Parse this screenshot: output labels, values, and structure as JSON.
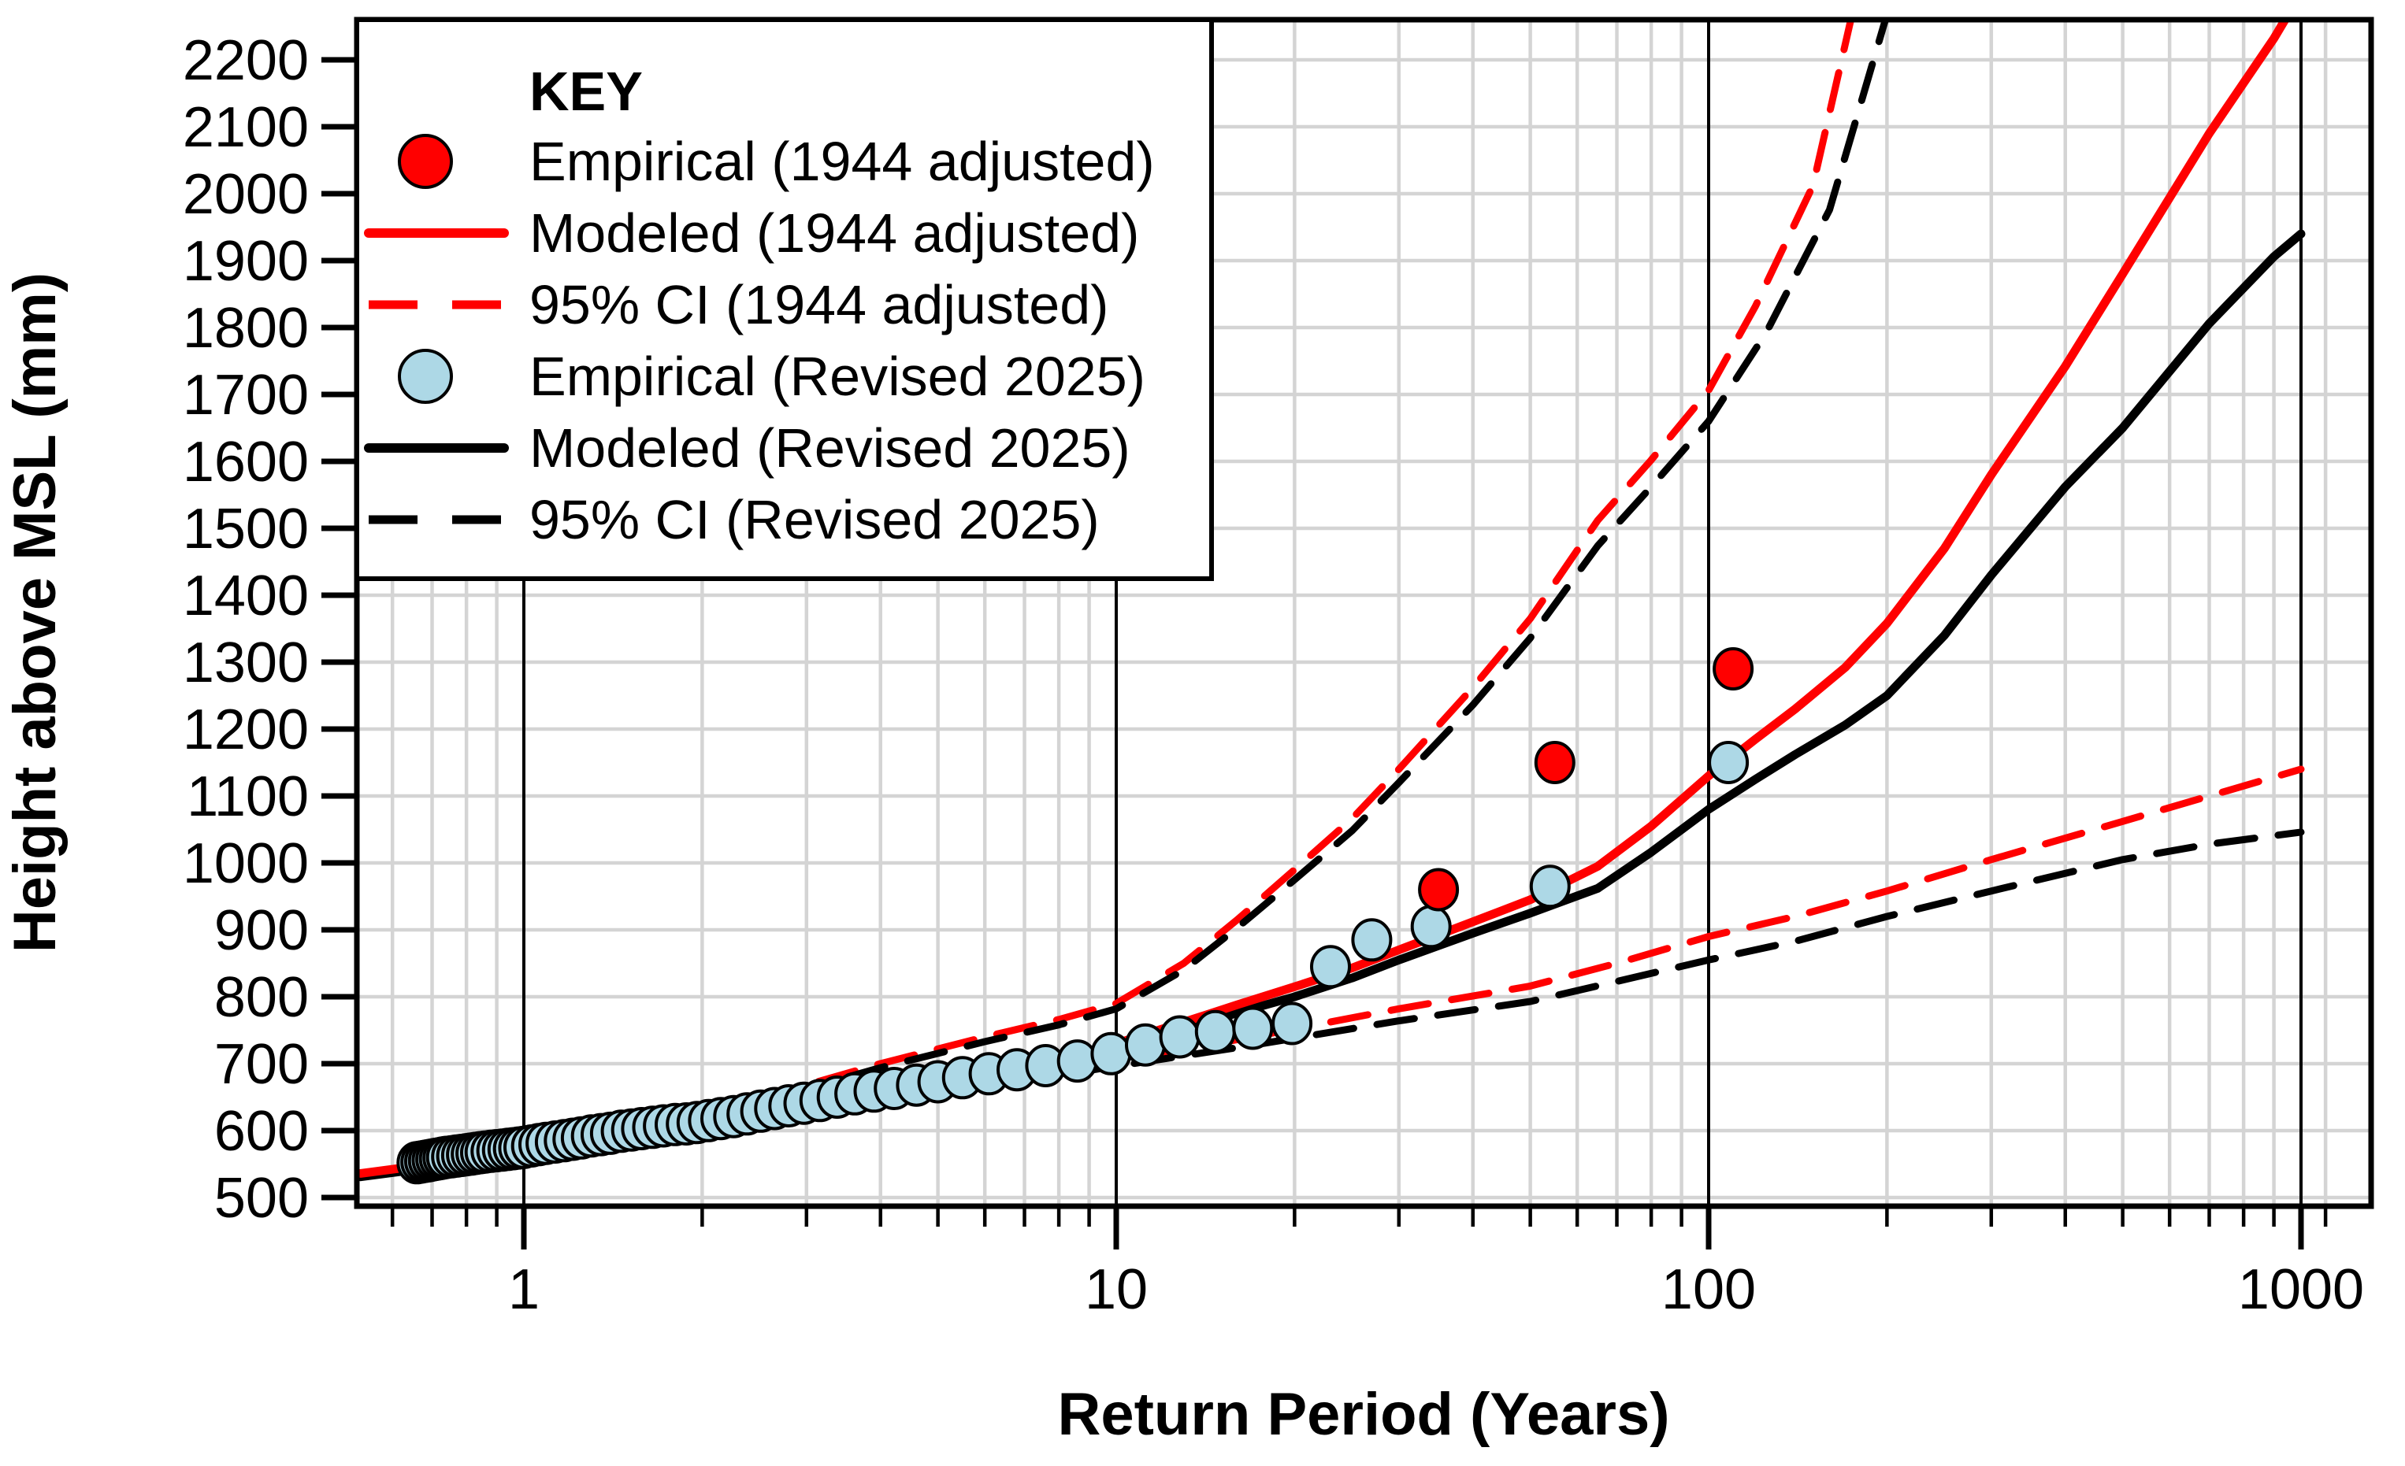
{
  "chart_data": {
    "type": "line+scatter",
    "title": "",
    "xlabel": "Return Period (Years)",
    "ylabel": "Height above MSL (mm)",
    "x_scale": "log10",
    "xlim": [
      0.52,
      1300
    ],
    "ylim": [
      482,
      2260
    ],
    "grid": true,
    "x_ticks": [
      1,
      10,
      100,
      1000
    ],
    "x_tick_labels": [
      "1",
      "10",
      "100",
      "1000"
    ],
    "x_minor_ticks": [
      0.6,
      0.7,
      0.8,
      0.9,
      2,
      3,
      4,
      5,
      6,
      7,
      8,
      9,
      20,
      30,
      40,
      50,
      60,
      70,
      80,
      90,
      200,
      300,
      400,
      500,
      600,
      700,
      800,
      900,
      1100
    ],
    "y_ticks": [
      500,
      600,
      700,
      800,
      900,
      1000,
      1100,
      1200,
      1300,
      1400,
      1500,
      1600,
      1700,
      1800,
      1900,
      2000,
      2100,
      2200
    ],
    "colors": {
      "adjusted_1944": "#ff0000",
      "revised_2025_marker": "#add8e6",
      "revised_2025_line": "#000000",
      "grid": "#d4d4d4",
      "frame": "#000000"
    },
    "legend": {
      "title": "KEY",
      "position": "top-left",
      "items": [
        {
          "label": "Empirical (1944 adjusted)",
          "swatch": "circle",
          "color": "#ff0000"
        },
        {
          "label": "Modeled (1944 adjusted)",
          "swatch": "line",
          "color": "#ff0000"
        },
        {
          "label": "95% CI (1944 adjusted)",
          "swatch": "dashed-line",
          "color": "#ff0000"
        },
        {
          "label": "Empirical (Revised 2025)",
          "swatch": "circle",
          "color": "#add8e6"
        },
        {
          "label": "Modeled (Revised 2025)",
          "swatch": "line",
          "color": "#000000"
        },
        {
          "label": "95% CI (Revised 2025)",
          "swatch": "dashed-line",
          "color": "#000000"
        }
      ]
    },
    "series": [
      {
        "name": "95% CI (1944 adjusted) upper",
        "kind": "line",
        "color": "#ff0000",
        "width": 9,
        "dash": "48 30",
        "dashoffset": 0,
        "points": [
          [
            2.5,
            648
          ],
          [
            4,
            700
          ],
          [
            6,
            740
          ],
          [
            8,
            766
          ],
          [
            10,
            790
          ],
          [
            13,
            850
          ],
          [
            16,
            915
          ],
          [
            20,
            990
          ],
          [
            25,
            1066
          ],
          [
            30,
            1140
          ],
          [
            40,
            1262
          ],
          [
            50,
            1365
          ],
          [
            65,
            1512
          ],
          [
            80,
            1602
          ],
          [
            100,
            1706
          ],
          [
            120,
            1832
          ],
          [
            150,
            2012
          ],
          [
            178,
            2300
          ]
        ]
      },
      {
        "name": "95% CI (Revised 2025) upper",
        "kind": "line",
        "color": "#000000",
        "width": 9,
        "dash": "48 30",
        "dashoffset": 39,
        "points": [
          [
            2.5,
            643
          ],
          [
            4,
            694
          ],
          [
            6,
            733
          ],
          [
            8,
            758
          ],
          [
            10,
            782
          ],
          [
            13,
            840
          ],
          [
            16,
            903
          ],
          [
            20,
            975
          ],
          [
            25,
            1048
          ],
          [
            30,
            1120
          ],
          [
            40,
            1236
          ],
          [
            50,
            1336
          ],
          [
            65,
            1474
          ],
          [
            80,
            1562
          ],
          [
            100,
            1660
          ],
          [
            125,
            1792
          ],
          [
            160,
            1976
          ],
          [
            205,
            2300
          ]
        ]
      },
      {
        "name": "95% CI (1944 adjusted) lower",
        "kind": "line",
        "color": "#ff0000",
        "width": 9,
        "dash": "48 30",
        "dashoffset": 0,
        "points": [
          [
            9,
            695
          ],
          [
            12,
            715
          ],
          [
            16,
            736
          ],
          [
            20,
            752
          ],
          [
            30,
            782
          ],
          [
            50,
            816
          ],
          [
            70,
            850
          ],
          [
            100,
            890
          ],
          [
            140,
            920
          ],
          [
            200,
            958
          ],
          [
            300,
            1005
          ],
          [
            500,
            1062
          ],
          [
            700,
            1100
          ],
          [
            1000,
            1140
          ]
        ]
      },
      {
        "name": "95% CI (Revised 2025) lower",
        "kind": "line",
        "color": "#000000",
        "width": 9,
        "dash": "48 30",
        "dashoffset": 20,
        "points": [
          [
            9,
            690
          ],
          [
            12,
            707
          ],
          [
            16,
            724
          ],
          [
            20,
            738
          ],
          [
            30,
            764
          ],
          [
            50,
            793
          ],
          [
            70,
            823
          ],
          [
            100,
            855
          ],
          [
            140,
            883
          ],
          [
            200,
            920
          ],
          [
            300,
            958
          ],
          [
            500,
            1005
          ],
          [
            700,
            1028
          ],
          [
            1000,
            1046
          ]
        ]
      },
      {
        "name": "Modeled (Revised 2025)",
        "kind": "line",
        "color": "#000000",
        "width": 11,
        "dash": null,
        "dashoffset": 0,
        "points": [
          [
            0.53,
            531
          ],
          [
            0.7,
            545
          ],
          [
            1,
            567
          ],
          [
            1.4,
            587
          ],
          [
            2,
            608
          ],
          [
            3,
            633
          ],
          [
            4,
            650
          ],
          [
            5,
            663
          ],
          [
            6,
            675
          ],
          [
            8,
            698
          ],
          [
            10,
            722
          ],
          [
            13,
            750
          ],
          [
            16,
            776
          ],
          [
            20,
            800
          ],
          [
            25,
            828
          ],
          [
            30,
            855
          ],
          [
            40,
            895
          ],
          [
            50,
            925
          ],
          [
            65,
            962
          ],
          [
            80,
            1016
          ],
          [
            100,
            1080
          ],
          [
            120,
            1125
          ],
          [
            140,
            1162
          ],
          [
            170,
            1206
          ],
          [
            200,
            1250
          ],
          [
            250,
            1340
          ],
          [
            300,
            1430
          ],
          [
            400,
            1562
          ],
          [
            500,
            1650
          ],
          [
            700,
            1806
          ],
          [
            900,
            1906
          ],
          [
            1000,
            1940
          ]
        ]
      },
      {
        "name": "Modeled (1944 adjusted)",
        "kind": "line",
        "color": "#ff0000",
        "width": 11,
        "dash": null,
        "dashoffset": 0,
        "points": [
          [
            0.53,
            536
          ],
          [
            0.7,
            550
          ],
          [
            1,
            572
          ],
          [
            1.4,
            592
          ],
          [
            2,
            614
          ],
          [
            3,
            640
          ],
          [
            4,
            657
          ],
          [
            5,
            670
          ],
          [
            6,
            682
          ],
          [
            8,
            706
          ],
          [
            10,
            730
          ],
          [
            13,
            762
          ],
          [
            16,
            788
          ],
          [
            20,
            815
          ],
          [
            25,
            843
          ],
          [
            30,
            870
          ],
          [
            40,
            912
          ],
          [
            50,
            945
          ],
          [
            65,
            995
          ],
          [
            80,
            1055
          ],
          [
            100,
            1130
          ],
          [
            120,
            1185
          ],
          [
            140,
            1230
          ],
          [
            170,
            1292
          ],
          [
            200,
            1358
          ],
          [
            250,
            1470
          ],
          [
            300,
            1580
          ],
          [
            400,
            1742
          ],
          [
            500,
            1880
          ],
          [
            700,
            2090
          ],
          [
            900,
            2232
          ],
          [
            1000,
            2300
          ]
        ]
      },
      {
        "name": "Empirical (Revised 2025)",
        "kind": "scatter",
        "color": "#add8e6",
        "rx": 24,
        "ry": 25.5,
        "stroke": "#000000",
        "strokewidth": 4,
        "points": [
          [
            0.66,
            552
          ],
          [
            0.67,
            553
          ],
          [
            0.68,
            554
          ],
          [
            0.69,
            555
          ],
          [
            0.7,
            556
          ],
          [
            0.71,
            557
          ],
          [
            0.72,
            558
          ],
          [
            0.73,
            559
          ],
          [
            0.74,
            560
          ],
          [
            0.755,
            561
          ],
          [
            0.77,
            562
          ],
          [
            0.785,
            563
          ],
          [
            0.8,
            564
          ],
          [
            0.815,
            565
          ],
          [
            0.83,
            566
          ],
          [
            0.845,
            567
          ],
          [
            0.86,
            568
          ],
          [
            0.88,
            569
          ],
          [
            0.9,
            570
          ],
          [
            0.92,
            571
          ],
          [
            0.94,
            572
          ],
          [
            0.96,
            573
          ],
          [
            0.98,
            574
          ],
          [
            1.0,
            575
          ],
          [
            1.03,
            577
          ],
          [
            1.06,
            579
          ],
          [
            1.09,
            581
          ],
          [
            1.13,
            583
          ],
          [
            1.17,
            585
          ],
          [
            1.21,
            587
          ],
          [
            1.25,
            589
          ],
          [
            1.3,
            592
          ],
          [
            1.35,
            594
          ],
          [
            1.4,
            596
          ],
          [
            1.46,
            599
          ],
          [
            1.52,
            601
          ],
          [
            1.58,
            603
          ],
          [
            1.65,
            605
          ],
          [
            1.72,
            607
          ],
          [
            1.8,
            609
          ],
          [
            1.88,
            610
          ],
          [
            1.96,
            612
          ],
          [
            2.05,
            615
          ],
          [
            2.15,
            618
          ],
          [
            2.26,
            621
          ],
          [
            2.38,
            625
          ],
          [
            2.51,
            629
          ],
          [
            2.65,
            633
          ],
          [
            2.8,
            637
          ],
          [
            2.97,
            641
          ],
          [
            3.16,
            645
          ],
          [
            3.38,
            650
          ],
          [
            3.62,
            655
          ],
          [
            3.9,
            659
          ],
          [
            4.22,
            663
          ],
          [
            4.6,
            668
          ],
          [
            5.0,
            673
          ],
          [
            5.5,
            679
          ],
          [
            6.1,
            685
          ],
          [
            6.8,
            691
          ],
          [
            7.6,
            697
          ],
          [
            8.6,
            704
          ],
          [
            9.8,
            715
          ],
          [
            11.2,
            728
          ],
          [
            12.8,
            740
          ],
          [
            14.7,
            748
          ],
          [
            17,
            753
          ],
          [
            19.8,
            760
          ],
          [
            23,
            845
          ],
          [
            27,
            885
          ],
          [
            34,
            905
          ],
          [
            54,
            965
          ],
          [
            108,
            1150
          ]
        ]
      },
      {
        "name": "Empirical (1944 adjusted)",
        "kind": "scatter",
        "color": "#ff0000",
        "rx": 24,
        "ry": 25.5,
        "stroke": "#000000",
        "strokewidth": 4,
        "points": [
          [
            35,
            960
          ],
          [
            55,
            1150
          ],
          [
            110,
            1290
          ]
        ]
      }
    ]
  }
}
